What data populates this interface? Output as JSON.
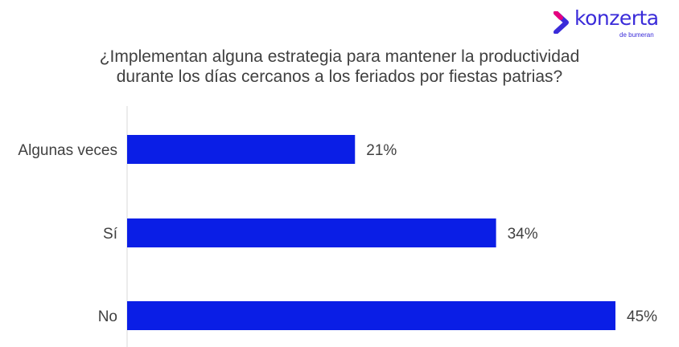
{
  "logo": {
    "wordmark": "konzerta",
    "sub": "de bumeran",
    "color": "#3a2bd9",
    "accent": "#e6007e"
  },
  "chart_data": {
    "type": "bar",
    "orientation": "horizontal",
    "title": [
      "¿Implementan alguna estrategia para mantener la productividad",
      "durante los días cercanos a los feriados por fiestas patrias?"
    ],
    "categories": [
      "Algunas veces",
      "Sí",
      "No"
    ],
    "values": [
      21,
      34,
      45
    ],
    "data_labels": [
      "21%",
      "34%",
      "45%"
    ],
    "xlim": [
      0,
      45
    ],
    "bar_color": "#0a1ee6",
    "grid": false,
    "legend": "none"
  }
}
